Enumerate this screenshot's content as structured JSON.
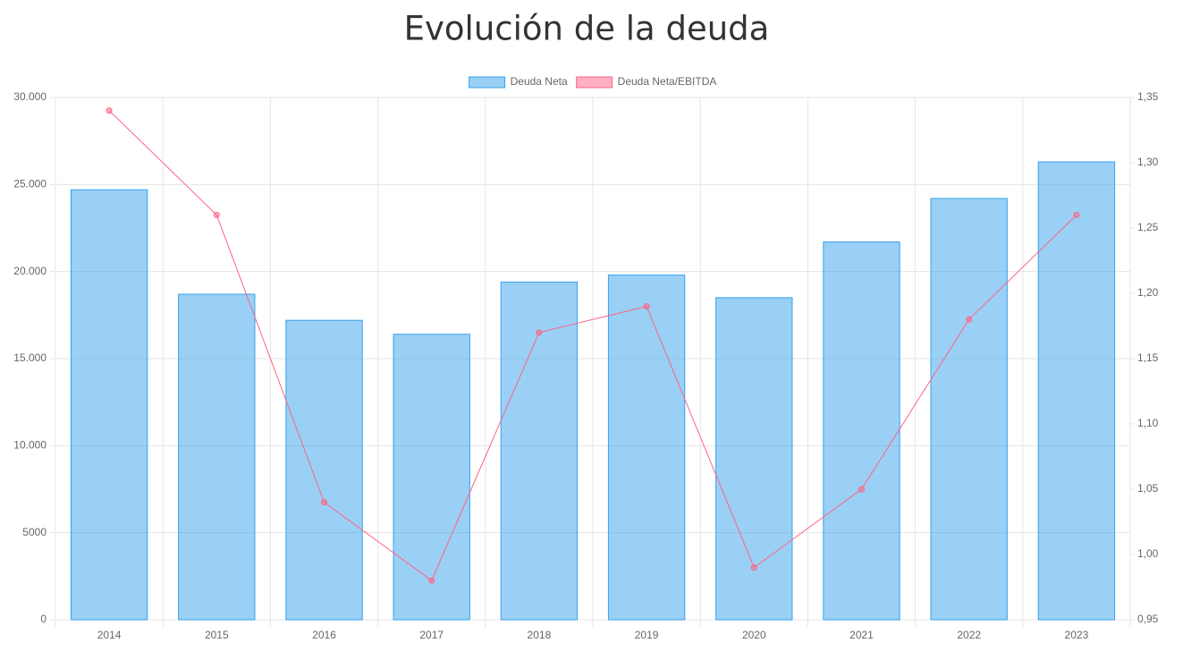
{
  "chart_data": {
    "type": "bar",
    "title": "Evolución de la deuda",
    "categories": [
      "2014",
      "2015",
      "2016",
      "2017",
      "2018",
      "2019",
      "2020",
      "2021",
      "2022",
      "2023"
    ],
    "series": [
      {
        "name": "Deuda Neta",
        "type": "bar",
        "color": "#36a2eb",
        "values": [
          24700,
          18700,
          17200,
          16400,
          19400,
          19800,
          18500,
          21700,
          24200,
          26300
        ]
      },
      {
        "name": "Deuda Neta/EBITDA",
        "type": "line",
        "axis": "y2",
        "color": "#ff6384",
        "values": [
          1.34,
          1.26,
          1.04,
          0.98,
          1.17,
          1.19,
          0.99,
          1.05,
          1.18,
          1.26
        ]
      }
    ],
    "ylim": [
      0,
      30000
    ],
    "yticks": [
      0,
      5000,
      {
        "value": 10000,
        "label": "10.000"
      },
      {
        "value": 15000,
        "label": "15.000"
      },
      {
        "value": 20000,
        "label": "20.000"
      },
      {
        "value": 25000,
        "label": "25.000"
      },
      {
        "value": 30000,
        "label": "30.000"
      }
    ],
    "y2lim": [
      0.95,
      1.35
    ],
    "y2ticks": [
      {
        "value": 0.95,
        "label": "0,95"
      },
      {
        "value": 1.0,
        "label": "1,00"
      },
      {
        "value": 1.05,
        "label": "1,05"
      },
      {
        "value": 1.1,
        "label": "1,10"
      },
      {
        "value": 1.15,
        "label": "1,15"
      },
      {
        "value": 1.2,
        "label": "1,20"
      },
      {
        "value": 1.25,
        "label": "1,25"
      },
      {
        "value": 1.3,
        "label": "1,30"
      },
      {
        "value": 1.35,
        "label": "1,35"
      }
    ],
    "grid": true,
    "legend": "top"
  }
}
